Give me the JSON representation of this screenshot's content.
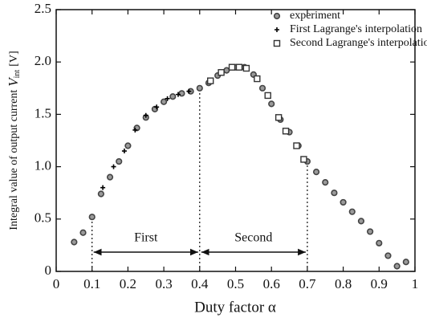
{
  "chart_data": {
    "type": "scatter",
    "xlabel": "Duty factor α",
    "ylabel": "Integral value of output current",
    "ylabel_var": "V",
    "ylabel_sub": "int",
    "ylabel_unit": "[V]",
    "xlim": [
      0,
      1
    ],
    "ylim": [
      0,
      2.5
    ],
    "xticks": [
      0,
      0.1,
      0.2,
      0.3,
      0.4,
      0.5,
      0.6,
      0.7,
      0.8,
      0.9,
      1
    ],
    "yticks": [
      0,
      0.5,
      {
        "value": 1.0,
        "label": "1.0"
      },
      {
        "value": 1.5,
        "label": "1.5"
      },
      {
        "value": 2.0,
        "label": "2.0"
      },
      {
        "value": 2.5,
        "label": "2.5"
      }
    ],
    "legend": "upper right",
    "grid": false,
    "regions": [
      {
        "label": "First",
        "from": 0.1,
        "to": 0.4
      },
      {
        "label": "Second",
        "from": 0.4,
        "to": 0.7
      }
    ],
    "series": [
      {
        "name": "experiment",
        "marker": "circle",
        "color": "#444444",
        "x": [
          0.05,
          0.075,
          0.1,
          0.125,
          0.15,
          0.175,
          0.2,
          0.225,
          0.25,
          0.275,
          0.3,
          0.325,
          0.35,
          0.375,
          0.4,
          0.425,
          0.45,
          0.475,
          0.5,
          0.525,
          0.55,
          0.575,
          0.6,
          0.625,
          0.65,
          0.675,
          0.7,
          0.725,
          0.75,
          0.775,
          0.8,
          0.825,
          0.85,
          0.875,
          0.9,
          0.925,
          0.95,
          0.975
        ],
        "values": [
          0.28,
          0.37,
          0.52,
          0.74,
          0.9,
          1.05,
          1.2,
          1.37,
          1.47,
          1.55,
          1.62,
          1.67,
          1.7,
          1.72,
          1.75,
          1.8,
          1.87,
          1.92,
          1.95,
          1.95,
          1.88,
          1.75,
          1.6,
          1.45,
          1.33,
          1.2,
          1.05,
          0.95,
          0.85,
          0.75,
          0.66,
          0.57,
          0.48,
          0.38,
          0.27,
          0.15,
          0.05,
          0.09
        ]
      },
      {
        "name": "First Lagrange's interpolation",
        "marker": "plus",
        "color": "#000000",
        "x": [
          0.13,
          0.16,
          0.19,
          0.22,
          0.25,
          0.28,
          0.31,
          0.34,
          0.37
        ],
        "values": [
          0.8,
          1.0,
          1.15,
          1.35,
          1.49,
          1.57,
          1.65,
          1.69,
          1.72
        ]
      },
      {
        "name": "Second Lagrange's interpolation",
        "marker": "square",
        "color": "#333333",
        "x": [
          0.43,
          0.46,
          0.49,
          0.51,
          0.53,
          0.56,
          0.59,
          0.62,
          0.64,
          0.67,
          0.69
        ],
        "values": [
          1.82,
          1.9,
          1.95,
          1.95,
          1.94,
          1.84,
          1.68,
          1.47,
          1.34,
          1.2,
          1.07
        ]
      }
    ]
  }
}
